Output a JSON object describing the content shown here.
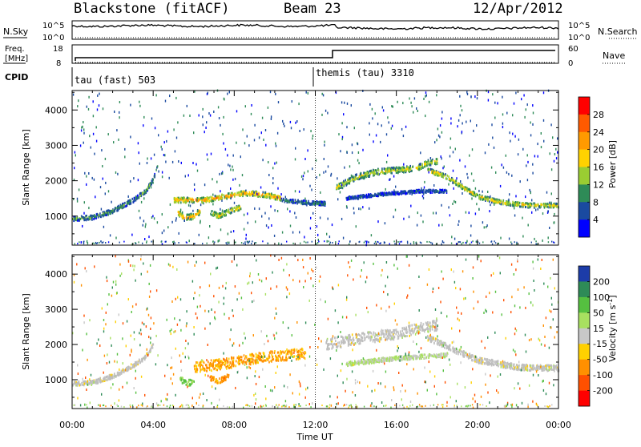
{
  "header": {
    "station": "Blackstone (fitACF)",
    "beam": "Beam 23",
    "date": "12/Apr/2012"
  },
  "top_panels": {
    "nsky_label": "N.Sky",
    "nsearch_label": "N.Search",
    "freq_label_1": "Freq.",
    "freq_label_2": "[MHz]",
    "nave_label": "Nave",
    "cpid_label": "CPID",
    "noise_ticks_left": [
      "10^5",
      "10^0"
    ],
    "noise_ticks_right": [
      "10^5",
      "10^0"
    ],
    "freq_ticks": [
      "18",
      "8"
    ],
    "nave_ticks": [
      "60",
      "0"
    ],
    "cpid_segments": [
      {
        "label": "tau (fast) 503",
        "start_hour": 0
      },
      {
        "label": "themis (tau) 3310",
        "start_hour": 12
      }
    ]
  },
  "axes": {
    "xlabel": "Time UT",
    "x_ticks": [
      "00:00",
      "04:00",
      "08:00",
      "12:00",
      "16:00",
      "20:00",
      "00:00"
    ],
    "ylabel_power": "Slant Range [km]",
    "ylabel_velocity": "Slant Range [km]",
    "y_ticks": [
      "4000",
      "3000",
      "2000",
      "1000"
    ]
  },
  "power_colorbar": {
    "label": "Power [dB]",
    "ticks": [
      "28",
      "24",
      "20",
      "16",
      "12",
      "8",
      "4"
    ],
    "colors": [
      "#ff0000",
      "#ff5a00",
      "#ff9a00",
      "#ffd200",
      "#9acd32",
      "#2e8b57",
      "#1a4aa0",
      "#0000ff"
    ]
  },
  "velocity_colorbar": {
    "label_main": "Velocity [m s",
    "label_sup": "-1",
    "label_end": "]",
    "ticks": [
      "200",
      "100",
      "50",
      "15",
      "-15",
      "-50",
      "-100",
      "-200"
    ],
    "colors": [
      "#1c3ca8",
      "#2e8b57",
      "#55c040",
      "#a8e060",
      "#c8c8c8",
      "#ffd000",
      "#ff9000",
      "#ff5000",
      "#ff0000"
    ]
  },
  "chart_data": {
    "type": "heatmap",
    "x_range_hours": [
      0,
      24
    ],
    "y_range_km": [
      180,
      4550
    ],
    "ground_scatter_color": "#bebebe",
    "power_tracks": [
      {
        "pts": [
          [
            0.0,
            920
          ],
          [
            1.0,
            960
          ],
          [
            2.0,
            1150
          ],
          [
            3.0,
            1450
          ],
          [
            3.6,
            1700
          ],
          [
            4.0,
            2050
          ],
          [
            4.2,
            2400
          ]
        ],
        "hw": 60,
        "db": 12
      },
      {
        "pts": [
          [
            5.0,
            1450
          ],
          [
            6.5,
            1450
          ],
          [
            7.5,
            1550
          ],
          [
            8.5,
            1650
          ],
          [
            9.5,
            1600
          ],
          [
            10.3,
            1500
          ]
        ],
        "hw": 70,
        "db": 24
      },
      {
        "pts": [
          [
            10.3,
            1450
          ],
          [
            11.5,
            1380
          ],
          [
            12.5,
            1350
          ]
        ],
        "hw": 50,
        "db": 10
      },
      {
        "pts": [
          [
            5.2,
            1100
          ],
          [
            5.5,
            950
          ],
          [
            6.0,
            1000
          ],
          [
            6.3,
            1150
          ]
        ],
        "hw": 80,
        "db": 22
      },
      {
        "pts": [
          [
            6.8,
            1100
          ],
          [
            7.2,
            1000
          ],
          [
            7.8,
            1150
          ],
          [
            8.3,
            1250
          ]
        ],
        "hw": 70,
        "db": 20
      },
      {
        "pts": [
          [
            13.0,
            1800
          ],
          [
            14.0,
            2100
          ],
          [
            15.0,
            2250
          ],
          [
            16.0,
            2300
          ],
          [
            17.0,
            2350
          ],
          [
            17.5,
            2500
          ],
          [
            18.0,
            2550
          ]
        ],
        "hw": 80,
        "db": 18
      },
      {
        "pts": [
          [
            17.5,
            2300
          ],
          [
            18.5,
            2100
          ],
          [
            19.3,
            1800
          ],
          [
            20.0,
            1550
          ],
          [
            21.0,
            1400
          ],
          [
            22.5,
            1300
          ],
          [
            24.0,
            1300
          ]
        ],
        "hw": 60,
        "db": 20
      },
      {
        "pts": [
          [
            13.5,
            1500
          ],
          [
            15.0,
            1600
          ],
          [
            17.0,
            1700
          ],
          [
            18.5,
            1700
          ]
        ],
        "hw": 40,
        "db": 8
      }
    ],
    "velocity_tracks": [
      {
        "pts": [
          [
            0.0,
            880
          ],
          [
            1.0,
            920
          ],
          [
            2.0,
            1100
          ],
          [
            3.0,
            1400
          ],
          [
            3.6,
            1650
          ],
          [
            4.0,
            2000
          ]
        ],
        "hw": 60,
        "vel": 0,
        "gs": true
      },
      {
        "pts": [
          [
            6.0,
            1350
          ],
          [
            7.5,
            1450
          ],
          [
            9.0,
            1600
          ],
          [
            10.5,
            1700
          ],
          [
            11.5,
            1750
          ]
        ],
        "hw": 150,
        "vel": -60
      },
      {
        "pts": [
          [
            5.3,
            1000
          ],
          [
            5.6,
            900
          ],
          [
            6.0,
            950
          ]
        ],
        "hw": 90,
        "vel": 60
      },
      {
        "pts": [
          [
            6.8,
            1050
          ],
          [
            7.2,
            950
          ],
          [
            7.7,
            1100
          ]
        ],
        "hw": 70,
        "vel": -70
      },
      {
        "pts": [
          [
            12.5,
            2000
          ],
          [
            14.0,
            2150
          ],
          [
            16.0,
            2300
          ],
          [
            17.5,
            2500
          ],
          [
            18.0,
            2550
          ]
        ],
        "hw": 150,
        "vel": 0,
        "gs": true
      },
      {
        "pts": [
          [
            17.5,
            2200
          ],
          [
            19.0,
            1800
          ],
          [
            20.0,
            1550
          ],
          [
            22.0,
            1350
          ],
          [
            24.0,
            1320
          ]
        ],
        "hw": 80,
        "vel": 0,
        "gs": true
      },
      {
        "pts": [
          [
            13.5,
            1450
          ],
          [
            16.0,
            1600
          ],
          [
            18.5,
            1700
          ]
        ],
        "hw": 60,
        "vel": 20
      }
    ]
  }
}
